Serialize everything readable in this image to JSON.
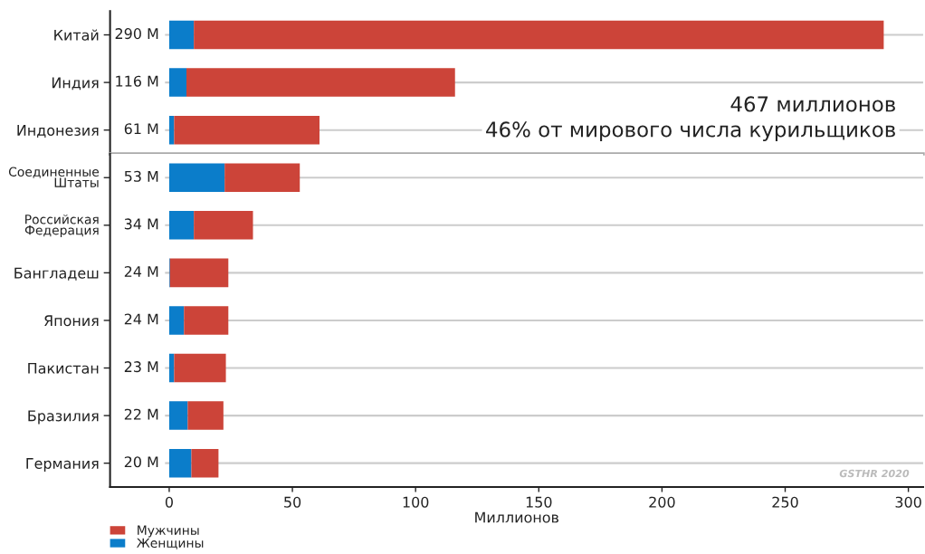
{
  "chart_data": [
    {
      "type": "bar",
      "orientation": "horizontal",
      "stacked": true,
      "categories": [
        "Китай",
        "Индия",
        "Индонезия"
      ],
      "series": [
        {
          "color": "#0b7dca",
          "values": [
            10,
            7,
            2
          ]
        },
        {
          "color": "#cc4439",
          "values": [
            280,
            109,
            59
          ]
        }
      ],
      "totals": [
        "290 M",
        "116 M",
        "61 M"
      ],
      "xlim": [
        -24,
        306
      ],
      "tick_labels": "y",
      "grid": "y",
      "annotations": [
        "467 миллионов",
        "46% от мирового числа курильщиков"
      ]
    },
    {
      "type": "bar",
      "orientation": "horizontal",
      "stacked": true,
      "categories": [
        "Соединенные\nШтаты",
        "Российская\nФедерация",
        "Бангладеш",
        "Япония",
        "Пакистан",
        "Бразилия",
        "Германия"
      ],
      "series": [
        {
          "name": "Женщины",
          "color": "#0b7dca",
          "values": [
            22.5,
            10,
            0.3,
            6,
            2,
            7.5,
            9
          ]
        },
        {
          "name": "Мужчины",
          "color": "#cc4439",
          "values": [
            30.5,
            24,
            23.7,
            18,
            21,
            14.5,
            11
          ]
        }
      ],
      "totals": [
        "53 M",
        "34 M",
        "24 M",
        "24 M",
        "23 M",
        "22 M",
        "20 M"
      ],
      "xlabel": "Миллионов",
      "xlim": [
        -24,
        306
      ],
      "xticks": [
        0,
        50,
        100,
        150,
        200,
        250,
        300
      ],
      "grid": "y",
      "legend": "bottom left",
      "annotations": [
        "GSTHR 2020"
      ]
    }
  ]
}
